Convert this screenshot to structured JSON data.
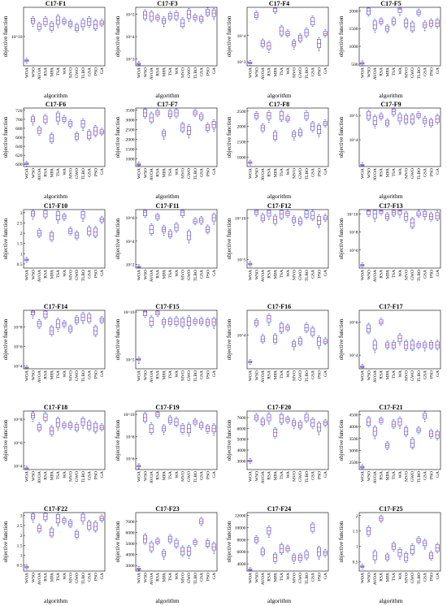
{
  "axis": {
    "ylabel": "objective function",
    "xlabel": "algorithm"
  },
  "algorithms": [
    "WOA",
    "WSO",
    "AVOA",
    "RSA",
    "MPA",
    "TSA",
    "WA",
    "MVO",
    "GWO",
    "TLBO",
    "GSA",
    "PSO",
    "GA"
  ],
  "colors": {
    "box": "#3a3ad6",
    "median": "#e0307a",
    "outlier": "#333333"
  },
  "chart_data": [
    {
      "type": "box",
      "title": "C17-F1",
      "scale": "log",
      "yticks_labels": [
        "10^10"
      ],
      "yticks_values": [
        10000000000.0
      ],
      "ylim": [
        1000000000.0,
        100000000000.0
      ],
      "medians": [
        1500000000.0,
        35000000000.0,
        22000000000.0,
        33000000000.0,
        22000000000.0,
        36000000000.0,
        33000000000.0,
        27000000000.0,
        20000000000.0,
        28000000000.0,
        32000000000.0,
        25000000000.0,
        29000000000.0
      ]
    },
    {
      "type": "box",
      "title": "C17-F3",
      "scale": "log",
      "yticks_labels": [
        "10^3",
        "10^4",
        "10^5"
      ],
      "yticks_values": [
        1000.0,
        10000.0,
        100000.0
      ],
      "ylim": [
        500,
        200000.0
      ],
      "medians": [
        600,
        90000.0,
        80000.0,
        70000.0,
        50000.0,
        80000.0,
        85000.0,
        40000.0,
        100000.0,
        70000.0,
        60000.0,
        120000.0,
        110000.0
      ]
    },
    {
      "type": "box",
      "title": "C17-F4",
      "scale": "log",
      "yticks_labels": [
        "10^3",
        "10^4"
      ],
      "yticks_values": [
        1000.0,
        10000.0
      ],
      "ylim": [
        700,
        120000.0
      ],
      "medians": [
        900,
        60000.0,
        5000,
        4000,
        110000.0,
        15000.0,
        12000.0,
        5000,
        8000,
        13000.0,
        35000.0,
        5000,
        12000.0
      ]
    },
    {
      "type": "box",
      "title": "C17-F5",
      "scale": "linear",
      "yticks_labels": [
        "500",
        "1000",
        "1500",
        "2000"
      ],
      "yticks_values": [
        500,
        1000,
        1500,
        2000
      ],
      "ylim": [
        450,
        2100
      ],
      "medians": [
        520,
        2000,
        1600,
        1700,
        1500,
        1700,
        2050,
        1650,
        1550,
        1950,
        1600,
        1650,
        1650
      ]
    },
    {
      "type": "box",
      "title": "C17-F6",
      "scale": "linear",
      "yticks_labels": [
        "600",
        "620",
        "640",
        "660",
        "680",
        "700",
        "720"
      ],
      "yticks_values": [
        600,
        620,
        640,
        660,
        680,
        700,
        720
      ],
      "ylim": [
        595,
        725
      ],
      "medians": [
        601,
        700,
        675,
        700,
        658,
        705,
        700,
        690,
        662,
        690,
        665,
        674,
        672
      ]
    },
    {
      "type": "box",
      "title": "C17-F7",
      "scale": "linear",
      "yticks_labels": [
        "1000",
        "1500",
        "2000",
        "2500",
        "3000",
        "3500"
      ],
      "yticks_values": [
        1000,
        1500,
        2000,
        2500,
        3000,
        3500
      ],
      "ylim": [
        600,
        3600
      ],
      "medians": [
        700,
        3350,
        3100,
        3350,
        2300,
        3300,
        3350,
        2600,
        2450,
        3350,
        3150,
        2600,
        2750
      ]
    },
    {
      "type": "box",
      "title": "C17-F8",
      "scale": "linear",
      "yticks_labels": [
        "1000",
        "1500",
        "2000",
        "2500"
      ],
      "yticks_values": [
        1000,
        1500,
        2000,
        2500
      ],
      "ylim": [
        700,
        2600
      ],
      "medians": [
        830,
        2350,
        1950,
        2350,
        1700,
        2350,
        2250,
        1750,
        1800,
        2350,
        2000,
        1900,
        2100
      ]
    },
    {
      "type": "box",
      "title": "C17-F9",
      "scale": "log",
      "yticks_labels": [
        "10^4",
        "10^5"
      ],
      "yticks_values": [
        10000.0,
        100000.0
      ],
      "ylim": [
        800,
        200000.0
      ],
      "medians": [
        900,
        100000.0,
        60000.0,
        90000.0,
        50000.0,
        140000.0,
        80000.0,
        70000.0,
        70000.0,
        100000.0,
        60000.0,
        50000.0,
        70000.0
      ]
    },
    {
      "type": "box",
      "title": "C17-F10",
      "scale": "linear",
      "yticks_labels": [
        "0.5",
        "1",
        "1.5",
        "2",
        "2.5",
        "3"
      ],
      "yticks_values": [
        5000,
        10000,
        15000,
        20000,
        25000,
        30000
      ],
      "ylim": [
        3000,
        31500
      ],
      "medians": [
        7000,
        29500,
        20000,
        29500,
        18500,
        28500,
        28000,
        21000,
        19000,
        29000,
        21000,
        20500,
        26500
      ]
    },
    {
      "type": "box",
      "title": "C17-F11",
      "scale": "log",
      "yticks_labels": [
        "10^2",
        "10^4",
        "10^6"
      ],
      "yticks_values": [
        100,
        10000.0,
        1000000.0
      ],
      "ylim": [
        50,
        5000000.0
      ],
      "medians": [
        60,
        3000000.0,
        100000.0,
        1200000.0,
        100000.0,
        40000.0,
        150000.0,
        3000000.0,
        30000.0,
        500000.0,
        600000.0,
        100000.0,
        1000000.0
      ]
    },
    {
      "type": "box",
      "title": "C17-F12",
      "scale": "log",
      "yticks_labels": [
        "10^5",
        "10^10"
      ],
      "yticks_values": [
        100000.0,
        10000000000.0
      ],
      "ylim": [
        10000.0,
        100000000000.0
      ],
      "medians": [
        30000.0,
        50000000000.0,
        10000000000.0,
        40000000000.0,
        6000000000.0,
        30000000000.0,
        35000000000.0,
        6000000000.0,
        4000000000.0,
        30000000000.0,
        20000000000.0,
        5000000000.0,
        10000000000.0
      ]
    },
    {
      "type": "box",
      "title": "C17-F13",
      "scale": "log",
      "yticks_labels": [
        "10^6",
        "10^8",
        "10^10"
      ],
      "yticks_values": [
        1000000.0,
        100000000.0,
        10000000000.0
      ],
      "ylim": [
        10000.0,
        30000000000.0
      ],
      "medians": [
        20000.0,
        20000000000.0,
        10000000000.0,
        20000000000.0,
        5000000000.0,
        15000000000.0,
        20000000000.0,
        5000000000.0,
        1000000000.0,
        10000000000.0,
        10000000000.0,
        5000000000.0,
        6000000000.0
      ]
    },
    {
      "type": "box",
      "title": "C17-F14",
      "scale": "log",
      "yticks_labels": [
        "10^4",
        "10^6",
        "10^8"
      ],
      "yticks_values": [
        10000.0,
        1000000.0,
        100000000.0
      ],
      "ylim": [
        5000.0,
        5000000000.0
      ],
      "medians": [
        6000.0,
        3000000000.0,
        200000000.0,
        2000000000.0,
        40000000.0,
        200000000.0,
        200000000.0,
        60000000.0,
        500000000.0,
        1000000000.0,
        800000000.0,
        40000000.0,
        500000000.0
      ]
    },
    {
      "type": "box",
      "title": "C17-F15",
      "scale": "log",
      "yticks_labels": [
        "10^5",
        "10^10"
      ],
      "yticks_values": [
        100000.0,
        10000000000.0
      ],
      "ylim": [
        10000.0,
        15000000000.0
      ],
      "medians": [
        100000.0,
        10000000000.0,
        1000000000.0,
        8000000000.0,
        900000000.0,
        1000000000.0,
        1000000000.0,
        800000000.0,
        1000000000.0,
        1000000000.0,
        1000000000.0,
        800000000.0,
        900000000.0
      ]
    },
    {
      "type": "box",
      "title": "C17-F16",
      "scale": "log",
      "yticks_labels": [
        "10^4"
      ],
      "yticks_values": [
        10000.0
      ],
      "ylim": [
        1500,
        40000.0
      ],
      "medians": [
        2200,
        20000.0,
        8000,
        25000.0,
        8000,
        15000.0,
        15000.0,
        6000,
        7000,
        15000.0,
        12000.0,
        7000,
        7000
      ]
    },
    {
      "type": "box",
      "title": "C17-F17",
      "scale": "log",
      "yticks_labels": [
        "10^4",
        "10^6"
      ],
      "yticks_values": [
        10000.0,
        1000000.0
      ],
      "ylim": [
        1500,
        5000000.0
      ],
      "medians": [
        2000.0,
        400000.0,
        40000.0,
        1000000.0,
        40000.0,
        40000.0,
        100000.0,
        40000.0,
        40000.0,
        40000.0,
        40000.0,
        40000.0,
        40000.0
      ]
    },
    {
      "type": "box",
      "title": "C17-F18",
      "scale": "log",
      "yticks_labels": [
        "10^4",
        "10^6",
        "10^8"
      ],
      "yticks_values": [
        10000.0,
        1000000.0,
        100000000.0
      ],
      "ylim": [
        5000.0,
        500000000.0
      ],
      "medians": [
        6000.0,
        200000000.0,
        20000000.0,
        150000000.0,
        10000000.0,
        50000000.0,
        30000000.0,
        30000000.0,
        20000000.0,
        60000000.0,
        30000000.0,
        20000000.0,
        20000000.0
      ]
    },
    {
      "type": "box",
      "title": "C17-F19",
      "scale": "log",
      "yticks_labels": [
        "10^6",
        "10^8",
        "10^10"
      ],
      "yticks_values": [
        1000000.0,
        100000000.0,
        10000000000.0
      ],
      "ylim": [
        100000.0,
        20000000000.0
      ],
      "medians": [
        200000.0,
        5000000000.0,
        500000000.0,
        10000000000.0,
        500000000.0,
        3000000000.0,
        2000000000.0,
        500000000.0,
        500000000.0,
        2000000000.0,
        1000000000.0,
        500000000.0,
        500000000.0
      ]
    },
    {
      "type": "box",
      "title": "C17-F20",
      "scale": "linear",
      "yticks_labels": [
        "3000",
        "4000",
        "5000",
        "6000",
        "7000"
      ],
      "yticks_values": [
        3000,
        4000,
        5000,
        6000,
        7000
      ],
      "ylim": [
        2200,
        7600
      ],
      "medians": [
        3000,
        7000,
        6600,
        7000,
        5600,
        6900,
        6800,
        6500,
        6300,
        7000,
        6500,
        6100,
        6500
      ]
    },
    {
      "type": "box",
      "title": "C17-F21",
      "scale": "linear",
      "yticks_labels": [
        "2500",
        "3000",
        "3500",
        "4000",
        "4500"
      ],
      "yticks_values": [
        2500,
        3000,
        3500,
        4000,
        4500
      ],
      "ylim": [
        2200,
        4650
      ],
      "medians": [
        2300,
        4200,
        3800,
        4250,
        3200,
        4100,
        4200,
        3800,
        3300,
        3850,
        4450,
        3700,
        3650
      ]
    },
    {
      "type": "box",
      "title": "C17-F22",
      "scale": "linear",
      "yticks_labels": [
        "0.5",
        "1",
        "1.5",
        "2",
        "2.5",
        "3"
      ],
      "yticks_values": [
        5000,
        10000,
        15000,
        20000,
        25000,
        30000
      ],
      "ylim": [
        2000,
        31500
      ],
      "medians": [
        4000,
        29500,
        23500,
        29500,
        21500,
        28500,
        27500,
        26000,
        20500,
        29000,
        25000,
        24500,
        28500
      ]
    },
    {
      "type": "box",
      "title": "C17-F23",
      "scale": "linear",
      "yticks_labels": [
        "3000",
        "4000",
        "5000",
        "6000",
        "7000"
      ],
      "yticks_values": [
        3000,
        4000,
        5000,
        6000,
        7000
      ],
      "ylim": [
        2500,
        7800
      ],
      "medians": [
        2700,
        5400,
        4700,
        5200,
        4100,
        5400,
        5000,
        4300,
        4300,
        5100,
        7000,
        5000,
        4700
      ]
    },
    {
      "type": "box",
      "title": "C17-F24",
      "scale": "linear",
      "yticks_labels": [
        "4000",
        "6000",
        "8000",
        "10000",
        "12000"
      ],
      "yticks_values": [
        4000,
        6000,
        8000,
        10000,
        12000
      ],
      "ylim": [
        2800,
        12500
      ],
      "medians": [
        3000,
        8000,
        6000,
        9500,
        5000,
        6500,
        6500,
        5000,
        5000,
        5500,
        10000,
        6000,
        5800
      ]
    },
    {
      "type": "box",
      "title": "C17-F25",
      "scale": "linear",
      "yticks_labels": [
        "0.5",
        "1",
        "1.5",
        "2"
      ],
      "yticks_values": [
        5000,
        10000,
        15000,
        20000
      ],
      "ylim": [
        2000,
        21000
      ],
      "medians": [
        3500,
        15000,
        7000,
        19000,
        6500,
        10000,
        8000,
        6500,
        9000,
        12000,
        11000,
        7000,
        9500
      ]
    }
  ]
}
